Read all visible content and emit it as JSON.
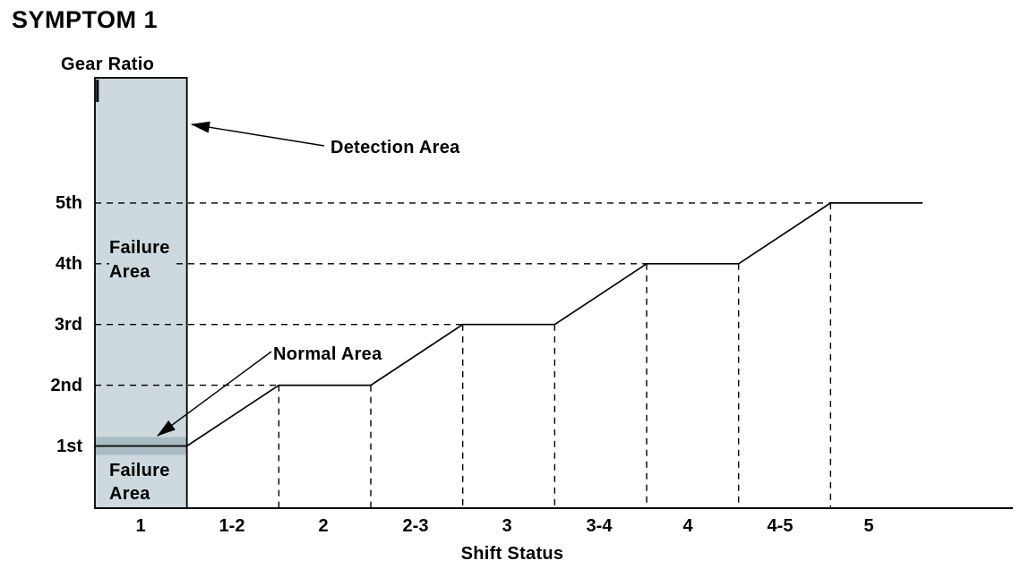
{
  "labels": {
    "title": "SYMPTOM 1",
    "y_axis": "Gear Ratio",
    "x_axis": "Shift Status",
    "detection_area": "Detection Area",
    "normal_area": "Normal Area",
    "failure_area_upper": "Failure\nArea",
    "failure_area_lower": "Failure\nArea",
    "y_ticks": [
      "5th",
      "4th",
      "3rd",
      "2nd",
      "1st"
    ],
    "x_ticks": [
      "1",
      "1-2",
      "2",
      "2-3",
      "3",
      "3-4",
      "4",
      "4-5",
      "5"
    ]
  },
  "colors": {
    "detection_fill": "#cdd9de",
    "normal_band_fill": "#a9bcc3",
    "line": "#000000",
    "background": "#ffffff"
  },
  "chart_data": {
    "type": "line",
    "subtype": "step-shift-pattern-diagram",
    "title": "SYMPTOM 1",
    "xlabel": "Shift Status",
    "ylabel": "Gear Ratio",
    "x_categories": [
      "1",
      "1-2",
      "2",
      "2-3",
      "3",
      "3-4",
      "4",
      "4-5",
      "5"
    ],
    "y_categories": [
      "1st",
      "2nd",
      "3rd",
      "4th",
      "5th"
    ],
    "grid": "dashed guides only",
    "legend": "none",
    "series": [
      {
        "name": "gear-ratio-step-line",
        "segments": [
          {
            "status": "1",
            "from_gear": 1,
            "to_gear": 1
          },
          {
            "status": "1-2",
            "from_gear": 1,
            "to_gear": 2
          },
          {
            "status": "2",
            "from_gear": 2,
            "to_gear": 2
          },
          {
            "status": "2-3",
            "from_gear": 2,
            "to_gear": 3
          },
          {
            "status": "3",
            "from_gear": 3,
            "to_gear": 3
          },
          {
            "status": "3-4",
            "from_gear": 3,
            "to_gear": 4
          },
          {
            "status": "4",
            "from_gear": 4,
            "to_gear": 4
          },
          {
            "status": "4-5",
            "from_gear": 4,
            "to_gear": 5
          },
          {
            "status": "5",
            "from_gear": 5,
            "to_gear": 5
          }
        ]
      }
    ],
    "guides": {
      "horizontal_dashed_at_gears": [
        2,
        3,
        4,
        5
      ],
      "vertical_dashed_at_plateau_bounds": [
        2,
        3,
        4,
        5
      ]
    },
    "regions": [
      {
        "name": "Detection Area",
        "x_span": "shift status 1 column",
        "y_span": "full height",
        "fill": "#cdd9de"
      },
      {
        "name": "Normal Area",
        "x_span": "shift status 1 column",
        "y_span": "narrow band centered on 1st gear line",
        "fill": "#a9bcc3"
      },
      {
        "name": "Failure Area (upper)",
        "x_span": "shift status 1 column",
        "y_span": "above normal band"
      },
      {
        "name": "Failure Area (lower)",
        "x_span": "shift status 1 column",
        "y_span": "below normal band"
      }
    ],
    "annotations": [
      {
        "text": "Detection Area",
        "arrow_points_to": "right edge of detection column"
      },
      {
        "text": "Normal Area",
        "arrow_points_to": "dark band at 1st gear level"
      }
    ]
  }
}
